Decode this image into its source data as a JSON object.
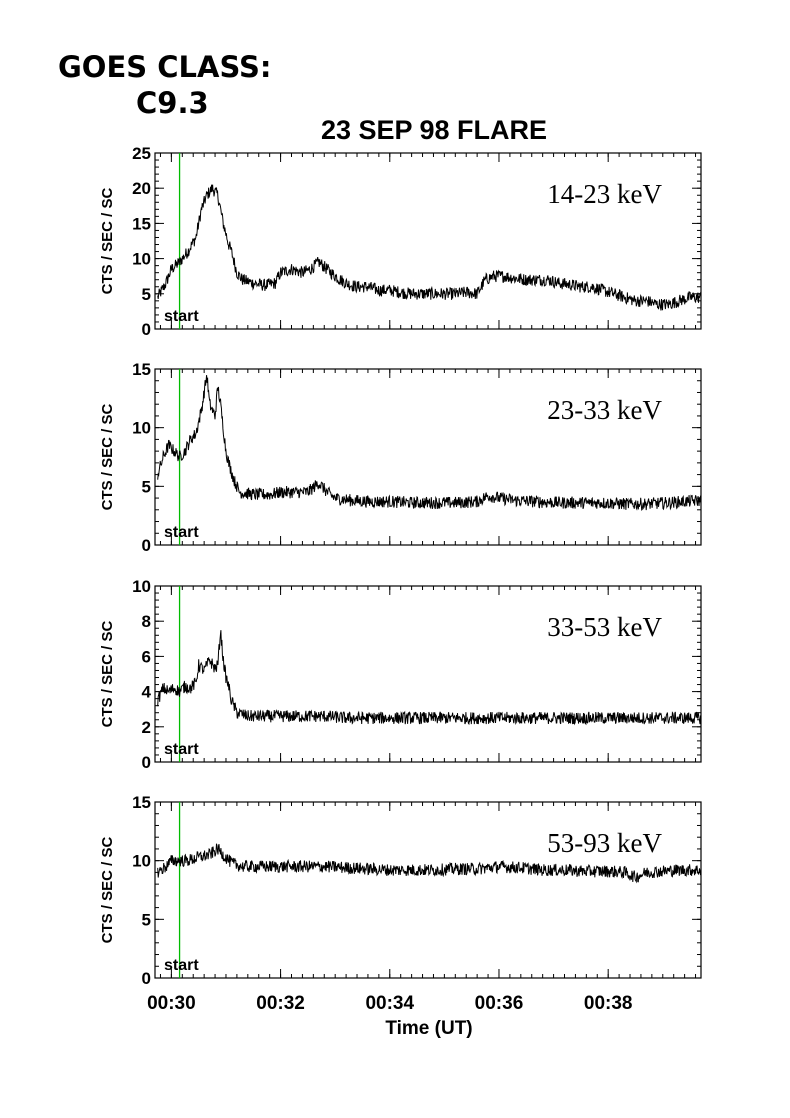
{
  "header": {
    "goes_label": "GOES CLASS:",
    "goes_class": "C9.3"
  },
  "chart_data": {
    "type": "line",
    "title": "23 SEP 98 FLARE",
    "xlabel": "Time (UT)",
    "x_tick_labels": [
      "00:30",
      "00:32",
      "00:34",
      "00:36",
      "00:38"
    ],
    "x_tick_values_min": [
      30,
      32,
      34,
      36,
      38
    ],
    "xlim_min": [
      29.7,
      39.7
    ],
    "x_unit": "minutes after 00:00 UT",
    "start_marker": {
      "label": "start",
      "x_min": 30.15,
      "color": "#00bb00"
    },
    "line_color": "#000000",
    "panels": [
      {
        "band": "14-23 keV",
        "ylabel": "CTS / SEC / SC",
        "ylim": [
          0,
          25
        ],
        "yticks": [
          0,
          5,
          10,
          15,
          20,
          25
        ],
        "points": [
          [
            29.75,
            4.5
          ],
          [
            29.9,
            6.5
          ],
          [
            30.0,
            8.5
          ],
          [
            30.15,
            9.5
          ],
          [
            30.3,
            11
          ],
          [
            30.45,
            13
          ],
          [
            30.55,
            17
          ],
          [
            30.65,
            19
          ],
          [
            30.75,
            20
          ],
          [
            30.85,
            19
          ],
          [
            30.95,
            15
          ],
          [
            31.05,
            12
          ],
          [
            31.1,
            11
          ],
          [
            31.2,
            8
          ],
          [
            31.3,
            7
          ],
          [
            31.5,
            6.5
          ],
          [
            31.7,
            6.2
          ],
          [
            31.9,
            6.5
          ],
          [
            32.0,
            8
          ],
          [
            32.2,
            8.5
          ],
          [
            32.4,
            8
          ],
          [
            32.55,
            8.5
          ],
          [
            32.7,
            9.5
          ],
          [
            32.85,
            8.5
          ],
          [
            33.0,
            7.5
          ],
          [
            33.2,
            6.5
          ],
          [
            33.4,
            6
          ],
          [
            33.6,
            6
          ],
          [
            33.8,
            5.5
          ],
          [
            34.0,
            5.5
          ],
          [
            34.2,
            5.2
          ],
          [
            34.4,
            5
          ],
          [
            34.6,
            5
          ],
          [
            34.8,
            5
          ],
          [
            35.0,
            5
          ],
          [
            35.2,
            5
          ],
          [
            35.4,
            5.2
          ],
          [
            35.6,
            5
          ],
          [
            35.75,
            7
          ],
          [
            35.9,
            7.5
          ],
          [
            36.1,
            7.5
          ],
          [
            36.3,
            7.2
          ],
          [
            36.5,
            7
          ],
          [
            36.7,
            7
          ],
          [
            36.9,
            7
          ],
          [
            37.1,
            6.5
          ],
          [
            37.3,
            6.3
          ],
          [
            37.5,
            6
          ],
          [
            37.7,
            6
          ],
          [
            37.9,
            5.5
          ],
          [
            38.1,
            5
          ],
          [
            38.3,
            4.5
          ],
          [
            38.5,
            4
          ],
          [
            38.7,
            4
          ],
          [
            38.9,
            3.5
          ],
          [
            39.1,
            3.5
          ],
          [
            39.3,
            4
          ],
          [
            39.5,
            4.5
          ],
          [
            39.7,
            4.5
          ]
        ]
      },
      {
        "band": "23-33 keV",
        "ylabel": "CTS / SEC / SC",
        "ylim": [
          0,
          15
        ],
        "yticks": [
          0,
          5,
          10,
          15
        ],
        "points": [
          [
            29.75,
            6
          ],
          [
            29.85,
            7.5
          ],
          [
            29.95,
            8.5
          ],
          [
            30.05,
            8
          ],
          [
            30.15,
            7.5
          ],
          [
            30.25,
            8
          ],
          [
            30.35,
            9
          ],
          [
            30.45,
            9.5
          ],
          [
            30.55,
            11.5
          ],
          [
            30.6,
            13
          ],
          [
            30.65,
            14.5
          ],
          [
            30.7,
            12
          ],
          [
            30.8,
            11
          ],
          [
            30.85,
            13.5
          ],
          [
            30.9,
            12
          ],
          [
            30.95,
            10
          ],
          [
            31.0,
            8
          ],
          [
            31.05,
            7
          ],
          [
            31.15,
            5.5
          ],
          [
            31.25,
            4.5
          ],
          [
            31.5,
            4.3
          ],
          [
            31.8,
            4.3
          ],
          [
            32.0,
            4.5
          ],
          [
            32.3,
            4.5
          ],
          [
            32.5,
            4.5
          ],
          [
            32.7,
            5.3
          ],
          [
            32.85,
            4.5
          ],
          [
            33.0,
            4
          ],
          [
            33.3,
            3.8
          ],
          [
            33.6,
            3.7
          ],
          [
            34.0,
            3.7
          ],
          [
            34.4,
            3.6
          ],
          [
            34.8,
            3.6
          ],
          [
            35.2,
            3.6
          ],
          [
            35.6,
            3.7
          ],
          [
            35.8,
            4.2
          ],
          [
            36.0,
            4
          ],
          [
            36.3,
            3.8
          ],
          [
            36.7,
            3.7
          ],
          [
            37.1,
            3.6
          ],
          [
            37.5,
            3.6
          ],
          [
            37.9,
            3.6
          ],
          [
            38.3,
            3.5
          ],
          [
            38.7,
            3.5
          ],
          [
            39.1,
            3.6
          ],
          [
            39.4,
            3.7
          ],
          [
            39.7,
            3.8
          ]
        ]
      },
      {
        "band": "33-53 keV",
        "ylabel": "CTS / SEC / SC",
        "ylim": [
          0,
          10
        ],
        "yticks": [
          0,
          2,
          4,
          6,
          8,
          10
        ],
        "points": [
          [
            29.75,
            3.5
          ],
          [
            29.85,
            4.2
          ],
          [
            29.95,
            4
          ],
          [
            30.05,
            4.2
          ],
          [
            30.15,
            4
          ],
          [
            30.25,
            4.3
          ],
          [
            30.35,
            4.2
          ],
          [
            30.45,
            4.5
          ],
          [
            30.5,
            5.5
          ],
          [
            30.6,
            5.2
          ],
          [
            30.7,
            5.8
          ],
          [
            30.8,
            5.3
          ],
          [
            30.85,
            5.5
          ],
          [
            30.9,
            7.5
          ],
          [
            30.95,
            5.8
          ],
          [
            31.0,
            4.8
          ],
          [
            31.05,
            4.3
          ],
          [
            31.1,
            3.5
          ],
          [
            31.2,
            2.8
          ],
          [
            31.4,
            2.6
          ],
          [
            31.7,
            2.6
          ],
          [
            32.0,
            2.6
          ],
          [
            32.4,
            2.6
          ],
          [
            32.8,
            2.6
          ],
          [
            33.2,
            2.5
          ],
          [
            33.6,
            2.5
          ],
          [
            34.0,
            2.5
          ],
          [
            34.4,
            2.5
          ],
          [
            34.8,
            2.5
          ],
          [
            35.2,
            2.5
          ],
          [
            35.6,
            2.5
          ],
          [
            36.0,
            2.5
          ],
          [
            36.4,
            2.5
          ],
          [
            36.8,
            2.5
          ],
          [
            37.2,
            2.5
          ],
          [
            37.6,
            2.5
          ],
          [
            38.0,
            2.5
          ],
          [
            38.4,
            2.5
          ],
          [
            38.8,
            2.5
          ],
          [
            39.2,
            2.5
          ],
          [
            39.7,
            2.5
          ]
        ]
      },
      {
        "band": "53-93 keV",
        "ylabel": "CTS / SEC / SC",
        "ylim": [
          0,
          15
        ],
        "yticks": [
          0,
          5,
          10,
          15
        ],
        "points": [
          [
            29.75,
            9
          ],
          [
            29.9,
            9.5
          ],
          [
            30.0,
            10
          ],
          [
            30.15,
            10
          ],
          [
            30.3,
            10
          ],
          [
            30.5,
            10.3
          ],
          [
            30.7,
            10.5
          ],
          [
            30.85,
            11
          ],
          [
            30.95,
            10.5
          ],
          [
            31.1,
            9.8
          ],
          [
            31.3,
            9.5
          ],
          [
            31.6,
            9.5
          ],
          [
            32.0,
            9.5
          ],
          [
            32.4,
            9.5
          ],
          [
            32.8,
            9.5
          ],
          [
            33.2,
            9.4
          ],
          [
            33.6,
            9.3
          ],
          [
            34.0,
            9.2
          ],
          [
            34.4,
            9.2
          ],
          [
            34.8,
            9.2
          ],
          [
            35.2,
            9.3
          ],
          [
            35.6,
            9.3
          ],
          [
            36.0,
            9.5
          ],
          [
            36.4,
            9.4
          ],
          [
            36.8,
            9.2
          ],
          [
            37.2,
            9.2
          ],
          [
            37.6,
            9.1
          ],
          [
            38.0,
            9.1
          ],
          [
            38.3,
            9.0
          ],
          [
            38.5,
            8.6
          ],
          [
            38.7,
            9.0
          ],
          [
            39.0,
            9.1
          ],
          [
            39.3,
            9.2
          ],
          [
            39.7,
            9.2
          ]
        ]
      }
    ]
  }
}
